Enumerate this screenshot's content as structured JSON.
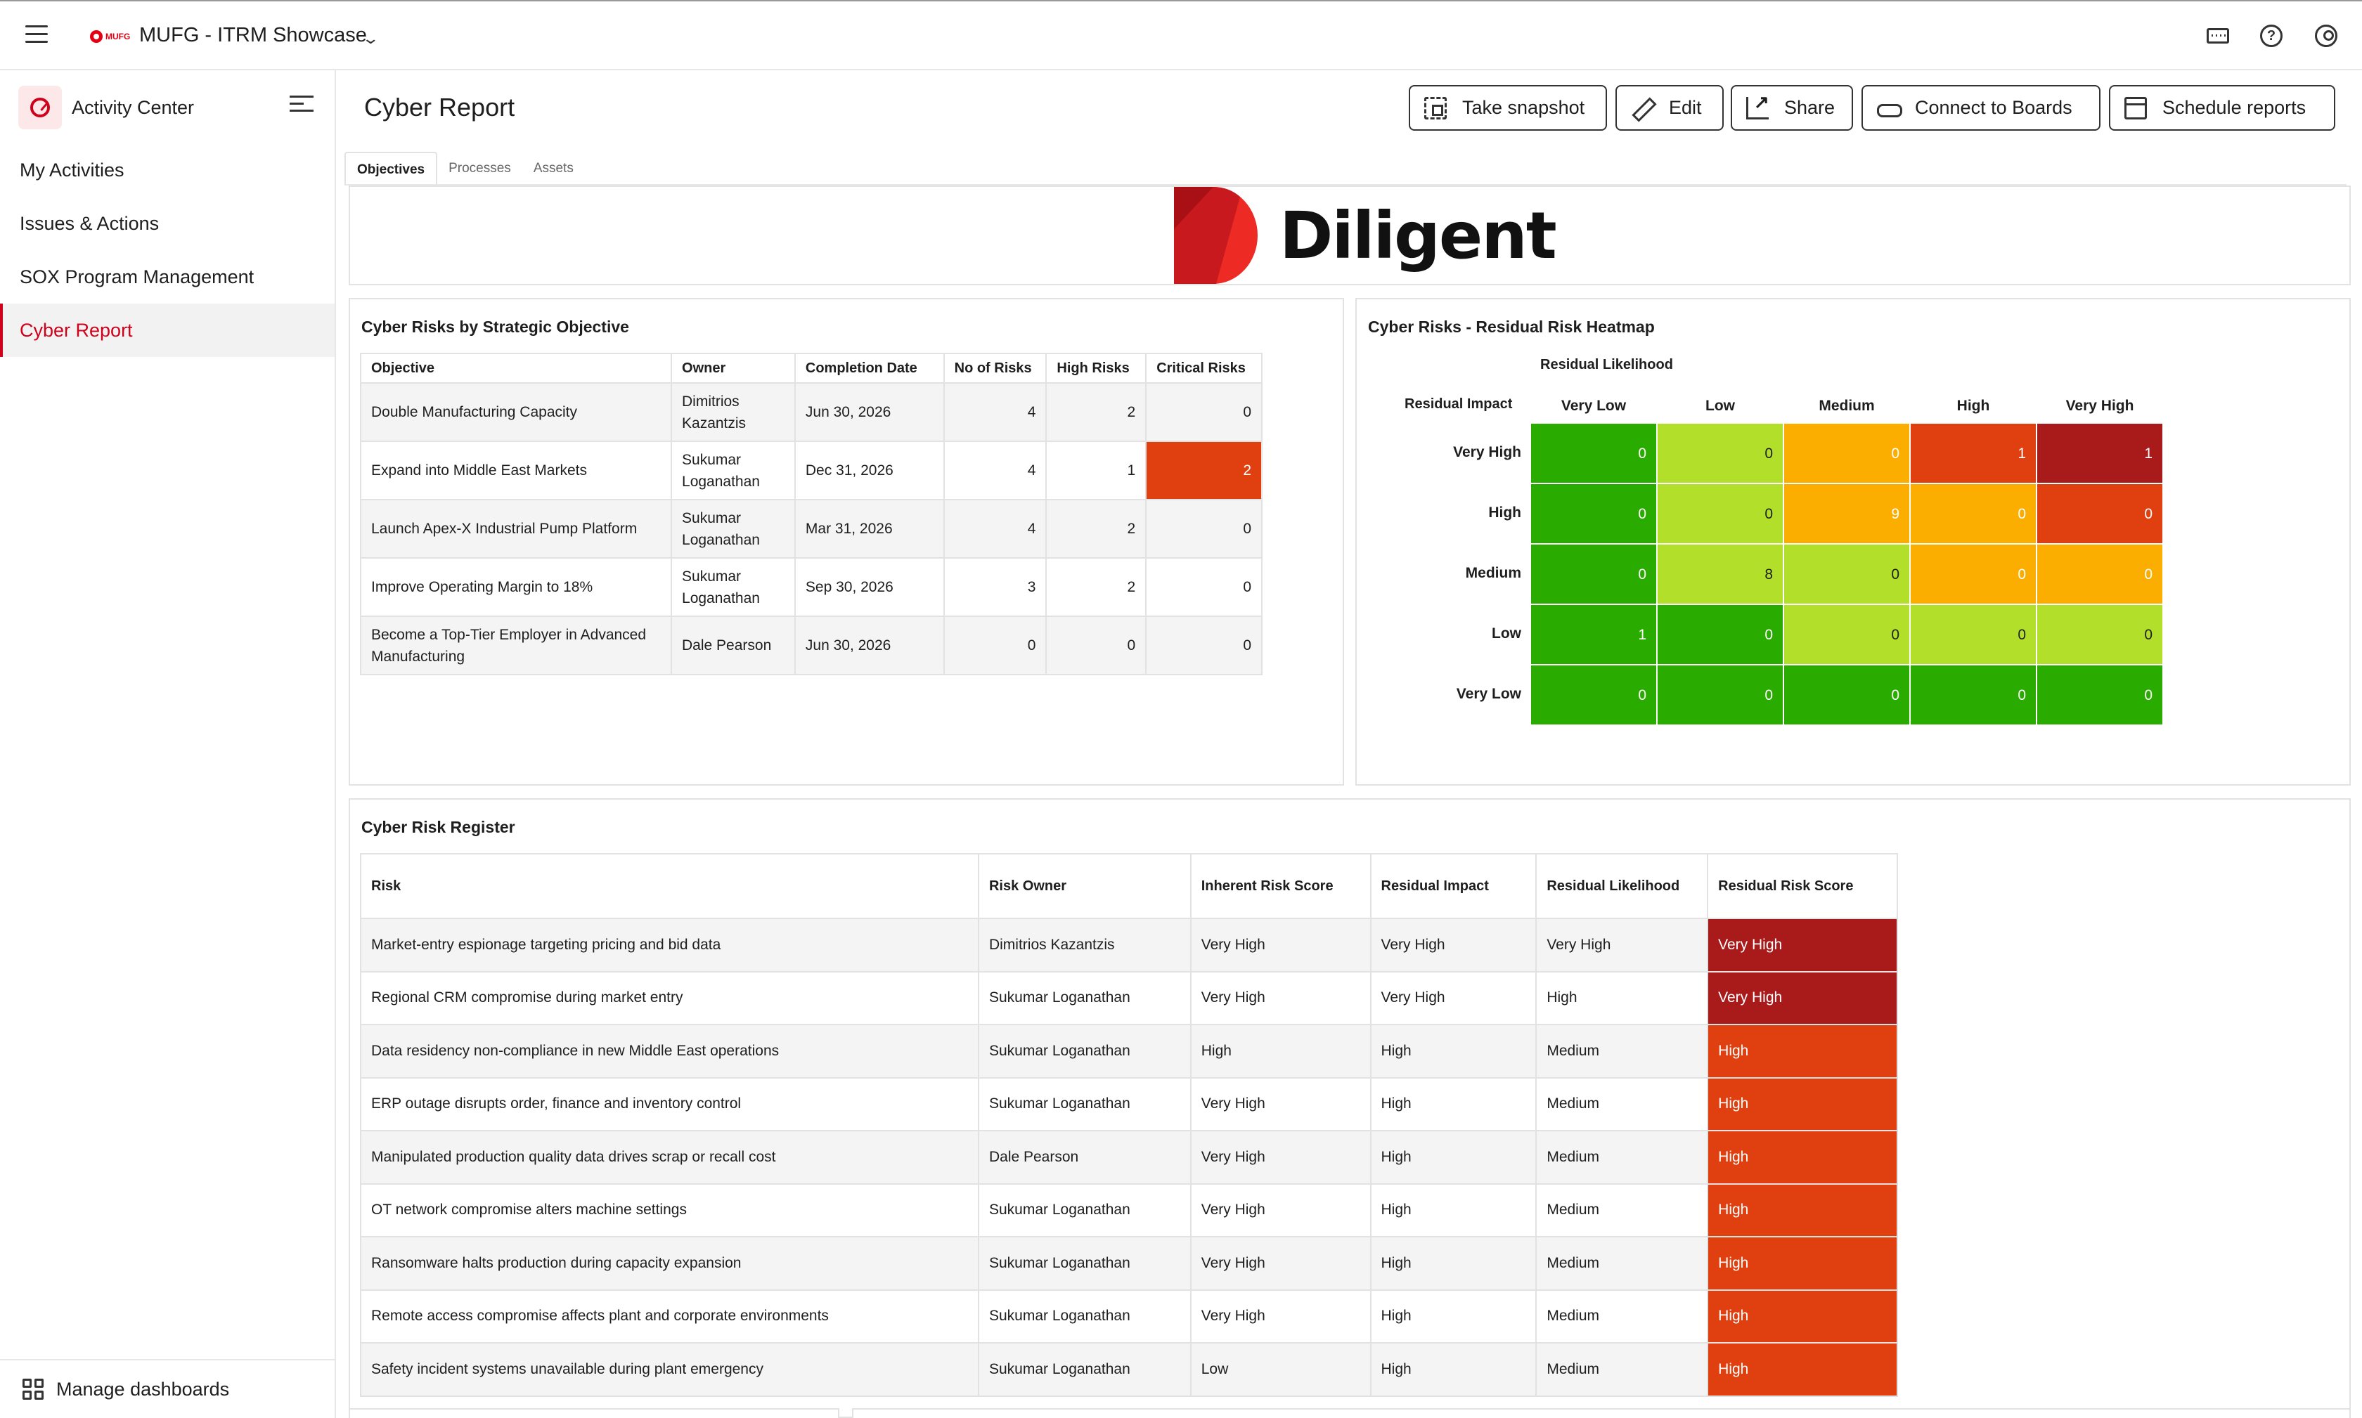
{
  "topbar": {
    "brand_logo": "MUFG",
    "workspace": "MUFG - ITRM Showcase"
  },
  "sidebar": {
    "header": "Activity Center",
    "items": [
      {
        "label": "My Activities"
      },
      {
        "label": "Issues & Actions"
      },
      {
        "label": "SOX Program Management"
      },
      {
        "label": "Cyber Report",
        "active": true
      }
    ],
    "footer": "Manage dashboards"
  },
  "page": {
    "title": "Cyber Report"
  },
  "toolbar": {
    "snapshot": "Take snapshot",
    "edit": "Edit",
    "share": "Share",
    "connect": "Connect to Boards",
    "schedule": "Schedule reports"
  },
  "tabs": [
    {
      "label": "Objectives"
    },
    {
      "label": "Processes"
    },
    {
      "label": "Assets"
    }
  ],
  "logo": {
    "word": "Diligent"
  },
  "objectives": {
    "title": "Cyber Risks by Strategic Objective",
    "headers": [
      "Objective",
      "Owner",
      "Completion Date",
      "No of Risks",
      "High Risks",
      "Critical Risks"
    ],
    "rows": [
      {
        "objective": "Double Manufacturing Capacity",
        "owner": "Dimitrios Kazantzis",
        "date": "Jun 30, 2026",
        "risks": "4",
        "high": "2",
        "critical": "0"
      },
      {
        "objective": "Expand into Middle East Markets",
        "owner": "Sukumar Loganathan",
        "date": "Dec 31, 2026",
        "risks": "4",
        "high": "1",
        "critical": "2"
      },
      {
        "objective": "Launch Apex-X Industrial Pump Platform",
        "owner": "Sukumar Loganathan",
        "date": "Mar 31, 2026",
        "risks": "4",
        "high": "2",
        "critical": "0"
      },
      {
        "objective": "Improve Operating Margin to 18%",
        "owner": "Sukumar Loganathan",
        "date": "Sep 30, 2026",
        "risks": "3",
        "high": "2",
        "critical": "0"
      },
      {
        "objective": "Become a Top-Tier Employer in Advanced Manufacturing",
        "owner": "Dale Pearson",
        "date": "Jun 30, 2026",
        "risks": "0",
        "high": "0",
        "critical": "0"
      }
    ]
  },
  "heatmap": {
    "title": "Cyber Risks - Residual Risk Heatmap",
    "likelihood_label": "Residual Likelihood",
    "impact_label": "Residual Impact",
    "columns": [
      "Very Low",
      "Low",
      "Medium",
      "High",
      "Very High"
    ],
    "rows": [
      {
        "label": "Very High",
        "values": [
          "0",
          "0",
          "0",
          "1",
          "1"
        ],
        "colors": [
          "#2aab00",
          "#b2e02a",
          "#fbae00",
          "#e04010",
          "#a91b1b"
        ]
      },
      {
        "label": "High",
        "values": [
          "0",
          "0",
          "9",
          "0",
          "0"
        ],
        "colors": [
          "#2aab00",
          "#b2e02a",
          "#fbae00",
          "#fbae00",
          "#e04010"
        ]
      },
      {
        "label": "Medium",
        "values": [
          "0",
          "8",
          "0",
          "0",
          "0"
        ],
        "colors": [
          "#2aab00",
          "#b2e02a",
          "#b2e02a",
          "#fbae00",
          "#fbae00"
        ]
      },
      {
        "label": "Low",
        "values": [
          "1",
          "0",
          "0",
          "0",
          "0"
        ],
        "colors": [
          "#2aab00",
          "#2aab00",
          "#b2e02a",
          "#b2e02a",
          "#b2e02a"
        ]
      },
      {
        "label": "Very Low",
        "values": [
          "0",
          "0",
          "0",
          "0",
          "0"
        ],
        "colors": [
          "#2aab00",
          "#2aab00",
          "#2aab00",
          "#2aab00",
          "#2aab00"
        ]
      }
    ]
  },
  "register": {
    "title": "Cyber Risk Register",
    "headers": [
      "Risk",
      "Risk Owner",
      "Inherent Risk Score",
      "Residual Impact",
      "Residual Likelihood",
      "Residual Risk Score"
    ],
    "rows": [
      {
        "risk": "Market-entry espionage targeting pricing and bid data",
        "owner": "Dimitrios Kazantzis",
        "inherent": "Very High",
        "impact": "Very High",
        "likelihood": "Very High",
        "score": "Very High"
      },
      {
        "risk": "Regional CRM compromise during market entry",
        "owner": "Sukumar Loganathan",
        "inherent": "Very High",
        "impact": "Very High",
        "likelihood": "High",
        "score": "Very High"
      },
      {
        "risk": "Data residency non-compliance in new Middle East operations",
        "owner": "Sukumar Loganathan",
        "inherent": "High",
        "impact": "High",
        "likelihood": "Medium",
        "score": "High"
      },
      {
        "risk": "ERP outage disrupts order, finance and inventory control",
        "owner": "Sukumar Loganathan",
        "inherent": "Very High",
        "impact": "High",
        "likelihood": "Medium",
        "score": "High"
      },
      {
        "risk": "Manipulated production quality data drives scrap or recall cost",
        "owner": "Dale Pearson",
        "inherent": "Very High",
        "impact": "High",
        "likelihood": "Medium",
        "score": "High"
      },
      {
        "risk": "OT network compromise alters machine settings",
        "owner": "Sukumar Loganathan",
        "inherent": "Very High",
        "impact": "High",
        "likelihood": "Medium",
        "score": "High"
      },
      {
        "risk": "Ransomware halts production during capacity expansion",
        "owner": "Sukumar Loganathan",
        "inherent": "Very High",
        "impact": "High",
        "likelihood": "Medium",
        "score": "High"
      },
      {
        "risk": "Remote access compromise affects plant and corporate environments",
        "owner": "Sukumar Loganathan",
        "inherent": "Very High",
        "impact": "High",
        "likelihood": "Medium",
        "score": "High"
      },
      {
        "risk": "Safety incident systems unavailable during plant emergency",
        "owner": "Sukumar Loganathan",
        "inherent": "Low",
        "impact": "High",
        "likelihood": "Medium",
        "score": "High"
      }
    ]
  },
  "colors": {
    "accent": "#d0021b",
    "critical": "#e04010",
    "very_high": "#a91b1b"
  }
}
